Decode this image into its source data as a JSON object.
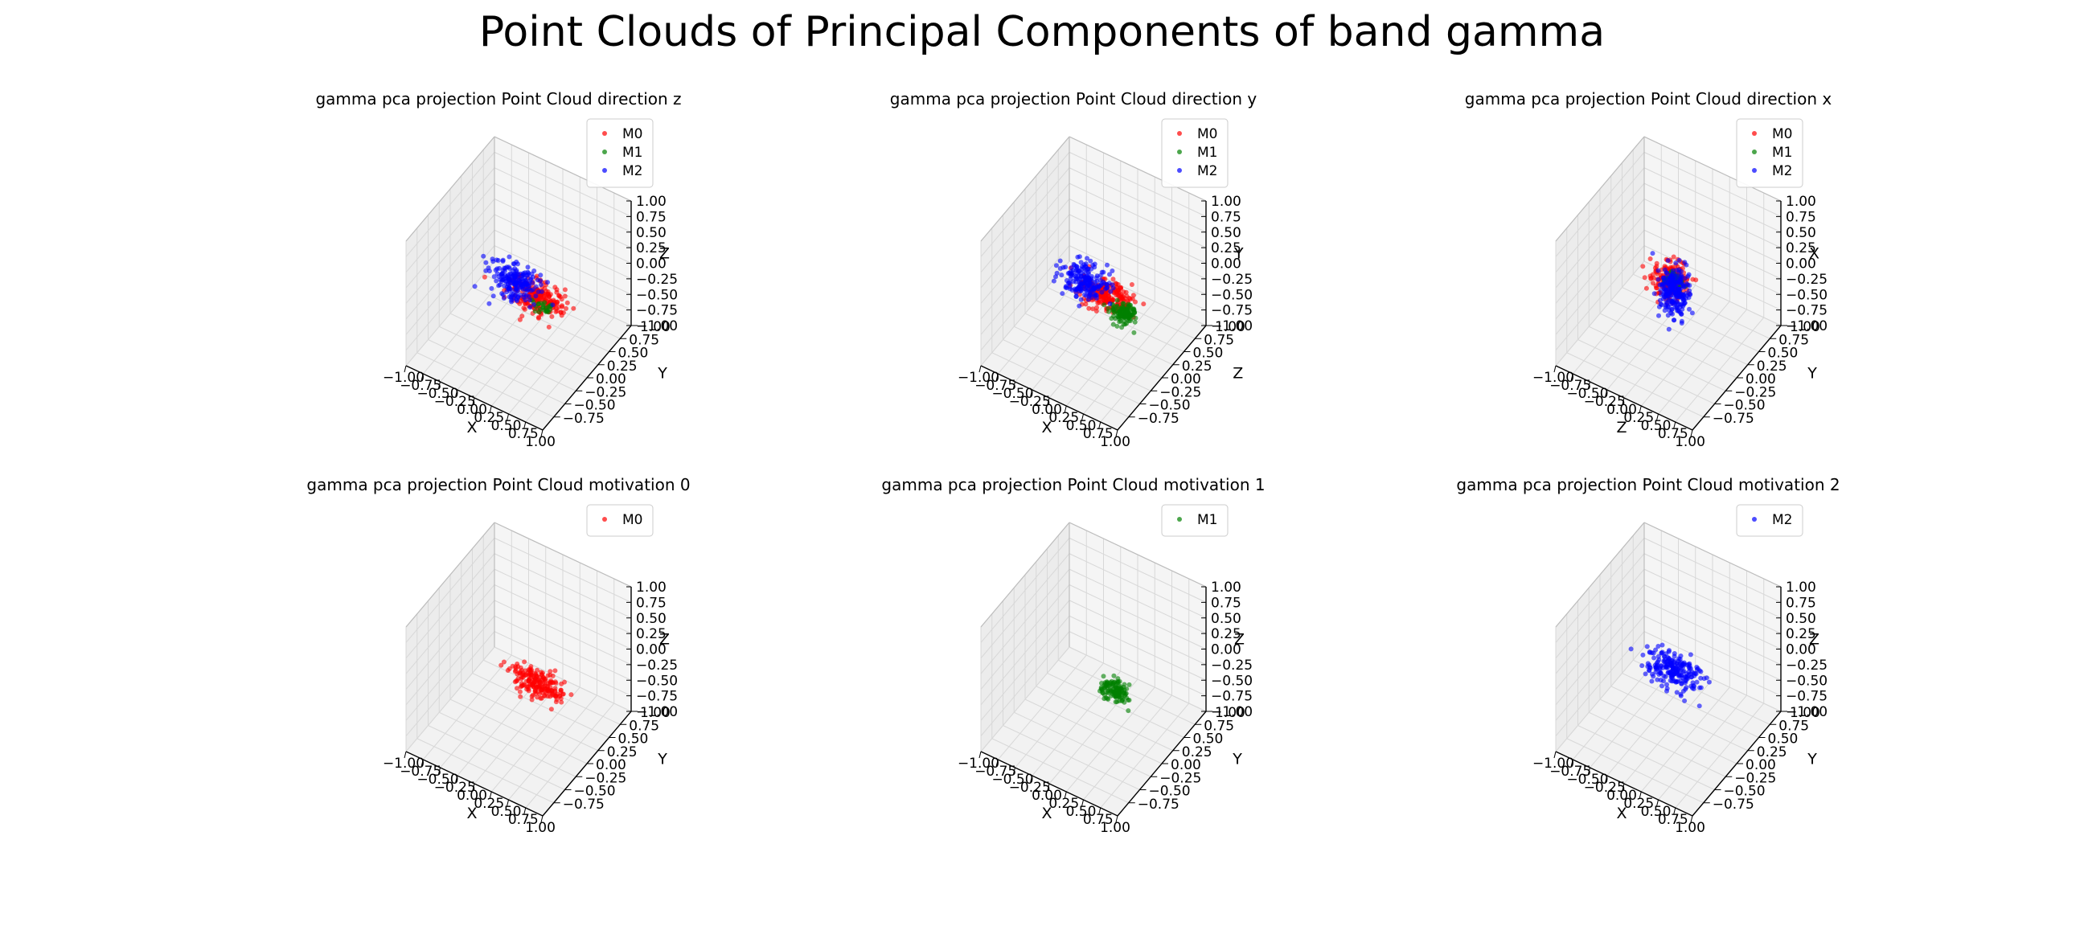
{
  "figure": {
    "title": "Point Clouds of Principal Components of band gamma"
  },
  "colors": {
    "M0": "#ff0000",
    "M1": "#008000",
    "M2": "#0000ff"
  },
  "chart_data": [
    {
      "type": "scatter",
      "title": "gamma pca projection Point Cloud direction z",
      "axis_labels": {
        "x": "X",
        "y": "Y",
        "z": "Z"
      },
      "xlim": [
        -1,
        1
      ],
      "ylim": [
        -1,
        1
      ],
      "zlim": [
        -1,
        1
      ],
      "x_ticks": [
        "−1.00",
        "−0.75",
        "−0.50",
        "−0.25",
        "0.00",
        "0.25",
        "0.50",
        "0.75",
        "1.00"
      ],
      "y_ticks": [
        "−0.75",
        "−0.50",
        "−0.25",
        "0.00",
        "0.25",
        "0.50",
        "0.75",
        "1.00"
      ],
      "z_ticks": [
        "−1.00",
        "−0.75",
        "−0.50",
        "−0.25",
        "0.00",
        "0.25",
        "0.50",
        "0.75",
        "1.00"
      ],
      "legend": [
        "M0",
        "M1",
        "M2"
      ],
      "legend_position": "top-right",
      "grid": true,
      "series": [
        {
          "name": "M0",
          "color": "#ff0000",
          "center": [
            0.25,
            0.05,
            -0.15
          ],
          "spread": [
            0.2,
            0.1,
            0.08
          ],
          "count": 220
        },
        {
          "name": "M1",
          "color": "#008000",
          "center": [
            0.35,
            0.02,
            -0.2
          ],
          "spread": [
            0.08,
            0.05,
            0.05
          ],
          "count": 25
        },
        {
          "name": "M2",
          "color": "#0000ff",
          "center": [
            -0.1,
            0.05,
            -0.05
          ],
          "spread": [
            0.18,
            0.1,
            0.1
          ],
          "count": 200
        }
      ]
    },
    {
      "type": "scatter",
      "title": "gamma pca projection Point Cloud direction y",
      "axis_labels": {
        "x": "X",
        "y": "Z",
        "z": "Y"
      },
      "xlim": [
        -1,
        1
      ],
      "ylim": [
        -1,
        1
      ],
      "zlim": [
        -1,
        1
      ],
      "x_ticks": [
        "−1.00",
        "−0.75",
        "−0.50",
        "−0.25",
        "0.00",
        "0.25",
        "0.50",
        "0.75",
        "1.00"
      ],
      "y_ticks": [
        "−0.75",
        "−0.50",
        "−0.25",
        "0.00",
        "0.25",
        "0.50",
        "0.75",
        "1.00"
      ],
      "z_ticks": [
        "−1.00",
        "−0.75",
        "−0.50",
        "−0.25",
        "0.00",
        "0.25",
        "0.50",
        "0.75",
        "1.00"
      ],
      "legend": [
        "M0",
        "M1",
        "M2"
      ],
      "legend_position": "top-right",
      "grid": true,
      "series": [
        {
          "name": "M0",
          "color": "#ff0000",
          "center": [
            0.15,
            0.05,
            -0.15
          ],
          "spread": [
            0.18,
            0.1,
            0.08
          ],
          "count": 220
        },
        {
          "name": "M1",
          "color": "#008000",
          "center": [
            0.45,
            0.0,
            -0.25
          ],
          "spread": [
            0.08,
            0.06,
            0.05
          ],
          "count": 120
        },
        {
          "name": "M2",
          "color": "#0000ff",
          "center": [
            -0.15,
            0.05,
            -0.1
          ],
          "spread": [
            0.15,
            0.1,
            0.1
          ],
          "count": 200
        }
      ]
    },
    {
      "type": "scatter",
      "title": "gamma pca projection Point Cloud direction x",
      "axis_labels": {
        "x": "Z",
        "y": "Y",
        "z": "X"
      },
      "xlim": [
        -1,
        1
      ],
      "ylim": [
        -1,
        1
      ],
      "zlim": [
        -1,
        1
      ],
      "x_ticks": [
        "−1.00",
        "−0.75",
        "−0.50",
        "−0.25",
        "0.00",
        "0.25",
        "0.50",
        "0.75",
        "1.00"
      ],
      "y_ticks": [
        "−0.75",
        "−0.50",
        "−0.25",
        "0.00",
        "0.25",
        "0.50",
        "0.75",
        "1.00"
      ],
      "z_ticks": [
        "−1.00",
        "−0.75",
        "−0.50",
        "−0.25",
        "0.00",
        "0.25",
        "0.50",
        "0.75",
        "1.00"
      ],
      "legend": [
        "M0",
        "M1",
        "M2"
      ],
      "legend_position": "top-right",
      "grid": true,
      "series": [
        {
          "name": "M0",
          "color": "#ff0000",
          "center": [
            0.0,
            0.05,
            0.0
          ],
          "spread": [
            0.12,
            0.1,
            0.12
          ],
          "count": 200
        },
        {
          "name": "M1",
          "color": "#008000",
          "center": [
            0.1,
            0.0,
            0.1
          ],
          "spread": [
            0.06,
            0.05,
            0.06
          ],
          "count": 40
        },
        {
          "name": "M2",
          "color": "#0000ff",
          "center": [
            0.05,
            0.05,
            -0.15
          ],
          "spread": [
            0.1,
            0.08,
            0.18
          ],
          "count": 220
        }
      ]
    },
    {
      "type": "scatter",
      "title": "gamma pca projection Point Cloud motivation 0",
      "axis_labels": {
        "x": "X",
        "y": "Y",
        "z": "Z"
      },
      "xlim": [
        -1,
        1
      ],
      "ylim": [
        -1,
        1
      ],
      "zlim": [
        -1,
        1
      ],
      "x_ticks": [
        "−1.00",
        "−0.75",
        "−0.50",
        "−0.25",
        "0.00",
        "0.25",
        "0.50",
        "0.75",
        "1.00"
      ],
      "y_ticks": [
        "−0.75",
        "−0.50",
        "−0.25",
        "0.00",
        "0.25",
        "0.50",
        "0.75",
        "1.00"
      ],
      "z_ticks": [
        "−1.00",
        "−0.75",
        "−0.50",
        "−0.25",
        "0.00",
        "0.25",
        "0.50",
        "0.75",
        "1.00"
      ],
      "legend": [
        "M0"
      ],
      "legend_position": "top-right",
      "grid": true,
      "series": [
        {
          "name": "M0",
          "color": "#ff0000",
          "center": [
            0.25,
            0.05,
            -0.15
          ],
          "spread": [
            0.18,
            0.08,
            0.08
          ],
          "count": 200
        }
      ]
    },
    {
      "type": "scatter",
      "title": "gamma pca projection Point Cloud motivation 1",
      "axis_labels": {
        "x": "X",
        "y": "Y",
        "z": "Z"
      },
      "xlim": [
        -1,
        1
      ],
      "ylim": [
        -1,
        1
      ],
      "zlim": [
        -1,
        1
      ],
      "x_ticks": [
        "−1.00",
        "−0.75",
        "−0.50",
        "−0.25",
        "0.00",
        "0.25",
        "0.50",
        "0.75",
        "1.00"
      ],
      "y_ticks": [
        "−0.75",
        "−0.50",
        "−0.25",
        "0.00",
        "0.25",
        "0.50",
        "0.75",
        "1.00"
      ],
      "z_ticks": [
        "−1.00",
        "−0.75",
        "−0.50",
        "−0.25",
        "0.00",
        "0.25",
        "0.50",
        "0.75",
        "1.00"
      ],
      "legend": [
        "M1"
      ],
      "legend_position": "top-right",
      "grid": true,
      "series": [
        {
          "name": "M1",
          "color": "#008000",
          "center": [
            0.3,
            0.02,
            -0.2
          ],
          "spread": [
            0.1,
            0.06,
            0.06
          ],
          "count": 120
        }
      ]
    },
    {
      "type": "scatter",
      "title": "gamma pca projection Point Cloud motivation 2",
      "axis_labels": {
        "x": "X",
        "y": "Y",
        "z": "Z"
      },
      "xlim": [
        -1,
        1
      ],
      "ylim": [
        -1,
        1
      ],
      "zlim": [
        -1,
        1
      ],
      "x_ticks": [
        "−1.00",
        "−0.75",
        "−0.50",
        "−0.25",
        "0.00",
        "0.25",
        "0.50",
        "0.75",
        "1.00"
      ],
      "y_ticks": [
        "−0.75",
        "−0.50",
        "−0.25",
        "0.00",
        "0.25",
        "0.50",
        "0.75",
        "1.00"
      ],
      "z_ticks": [
        "−1.00",
        "−0.75",
        "−0.50",
        "−0.25",
        "0.00",
        "0.25",
        "0.50",
        "0.75",
        "1.00"
      ],
      "legend": [
        "M2"
      ],
      "legend_position": "top-right",
      "grid": true,
      "series": [
        {
          "name": "M2",
          "color": "#0000ff",
          "center": [
            0.05,
            0.05,
            -0.05
          ],
          "spread": [
            0.2,
            0.1,
            0.1
          ],
          "count": 220
        }
      ]
    }
  ]
}
